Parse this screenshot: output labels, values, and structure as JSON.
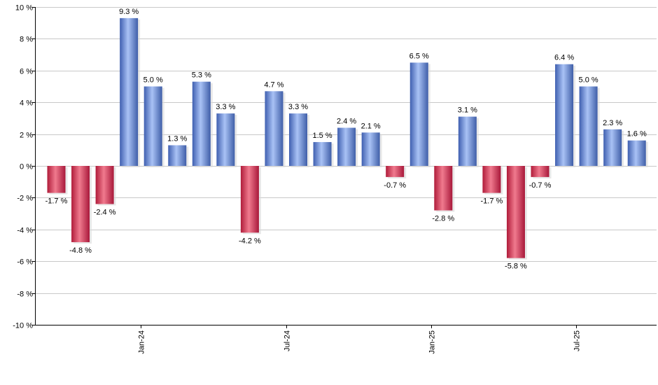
{
  "chart_data": {
    "type": "bar",
    "title": "",
    "xlabel": "",
    "ylabel": "",
    "ylim": [
      -10,
      10
    ],
    "y_ticks": [
      "10 %",
      "8 %",
      "6 %",
      "4 %",
      "2 %",
      "0 %",
      "-2 %",
      "-4 %",
      "-6 %",
      "-8 %",
      "-10 %"
    ],
    "x_tick_labels": [
      {
        "label": "Jan-24",
        "after_bar": 4
      },
      {
        "label": "Jul-24",
        "after_bar": 10
      },
      {
        "label": "Jan-25",
        "after_bar": 16
      },
      {
        "label": "Jul-25",
        "after_bar": 22
      }
    ],
    "grid": true,
    "positive_color": "#6f8fdc",
    "negative_color": "#d0304e",
    "values": [
      -1.7,
      -4.8,
      -2.4,
      9.3,
      5.0,
      1.3,
      5.3,
      3.3,
      -4.2,
      4.7,
      3.3,
      1.5,
      2.4,
      2.1,
      -0.7,
      6.5,
      -2.8,
      3.1,
      -1.7,
      -5.8,
      -0.7,
      6.4,
      5.0,
      2.3,
      1.6
    ],
    "value_labels": [
      "-1.7 %",
      "-4.8 %",
      "-2.4 %",
      "9.3 %",
      "5.0 %",
      "1.3 %",
      "5.3 %",
      "3.3 %",
      "-4.2 %",
      "4.7 %",
      "3.3 %",
      "1.5 %",
      "2.4 %",
      "2.1 %",
      "-0.7 %",
      "6.5 %",
      "-2.8 %",
      "3.1 %",
      "-1.7 %",
      "-5.8 %",
      "-0.7 %",
      "6.4 %",
      "5.0 %",
      "2.3 %",
      "1.6 %"
    ]
  }
}
